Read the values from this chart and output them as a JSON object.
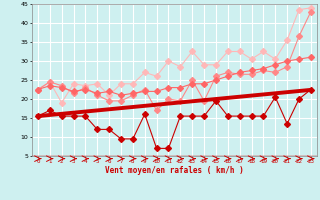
{
  "x": [
    0,
    1,
    2,
    3,
    4,
    5,
    6,
    7,
    8,
    9,
    10,
    11,
    12,
    13,
    14,
    15,
    16,
    17,
    18,
    19,
    20,
    21,
    22,
    23
  ],
  "line_dark_red": [
    15.5,
    17,
    15.5,
    15.5,
    15.5,
    12,
    12,
    9.5,
    9.5,
    16,
    7,
    7,
    15.5,
    15.5,
    15.5,
    19.5,
    15.5,
    15.5,
    15.5,
    15.5,
    20.5,
    13.5,
    20,
    22.5
  ],
  "line_trend": [
    15.5,
    15.8,
    16.1,
    16.4,
    16.7,
    17.0,
    17.3,
    17.6,
    17.9,
    18.2,
    18.5,
    18.8,
    19.1,
    19.4,
    19.7,
    20.0,
    20.3,
    20.6,
    20.9,
    21.2,
    21.5,
    21.8,
    22.1,
    22.4
  ],
  "line_pink1": [
    22.5,
    24.5,
    19,
    24,
    23.5,
    24,
    21,
    24,
    24,
    27,
    26,
    30,
    28.5,
    32.5,
    29,
    29,
    32.5,
    32.5,
    30.5,
    32.5,
    30.5,
    35.5,
    43.5,
    44
  ],
  "line_pink2": [
    22.5,
    24.5,
    23.5,
    21.5,
    23,
    21,
    19.5,
    19.5,
    21,
    22.5,
    17,
    20,
    19.5,
    25,
    19.5,
    26,
    27,
    26.5,
    26.5,
    27.5,
    27,
    28.5,
    36.5,
    43
  ],
  "line_pink3": [
    22.5,
    23.5,
    23,
    22,
    22.5,
    21.5,
    22,
    21,
    21.5,
    22,
    22,
    23,
    23,
    24,
    24,
    25,
    26,
    27,
    27.5,
    28,
    29,
    30,
    30.5,
    31
  ],
  "xlabel": "Vent moyen/en rafales ( km/h )",
  "xlim_min": -0.5,
  "xlim_max": 23.5,
  "ylim_min": 5,
  "ylim_max": 45,
  "yticks": [
    5,
    10,
    15,
    20,
    25,
    30,
    35,
    40,
    45
  ],
  "xticks": [
    0,
    1,
    2,
    3,
    4,
    5,
    6,
    7,
    8,
    9,
    10,
    11,
    12,
    13,
    14,
    15,
    16,
    17,
    18,
    19,
    20,
    21,
    22,
    23
  ],
  "bg_color": "#cef0f0",
  "grid_color": "#ffffff",
  "dark_red": "#cc0000",
  "pink_light": "#ffb8b8",
  "pink_med": "#ff8888",
  "pink_dark": "#ff6666"
}
